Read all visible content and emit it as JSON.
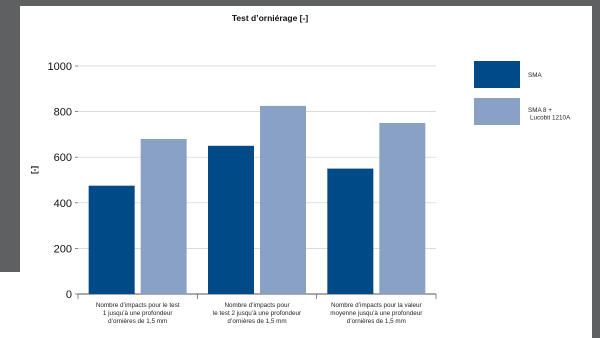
{
  "chart_data": {
    "type": "bar",
    "title": "Test d’orniérage [-]",
    "ylabel": "[-]",
    "xlabel": "",
    "ylim": [
      0,
      1000
    ],
    "yticks": [
      0,
      200,
      400,
      600,
      800,
      1000
    ],
    "grid": true,
    "legend_position": "right",
    "categories": [
      [
        "Nombre d’impacts pour le test",
        "1 jusqu’à une profondeur",
        "d’ornières de 1,5 mm"
      ],
      [
        "Nombre d’impacts pour",
        "le test 2 jusqu’à une profondeur",
        "d’ornières de 1,5 mm"
      ],
      [
        "Nombre d’impacts pour la valeur",
        "moyenne jusqu’à une profondeur",
        "d’ornières de 1,5 mm"
      ]
    ],
    "series": [
      {
        "name": "SMA",
        "legend_lines": [
          "SMA"
        ],
        "color": "#004a87",
        "values": [
          475,
          650,
          550
        ]
      },
      {
        "name": "SMA 8 + Lucobit 1210A",
        "legend_lines": [
          "SMA 8 +",
          "Lucobit 1210A"
        ],
        "color": "#89a1c4",
        "values": [
          680,
          825,
          750
        ]
      }
    ]
  }
}
